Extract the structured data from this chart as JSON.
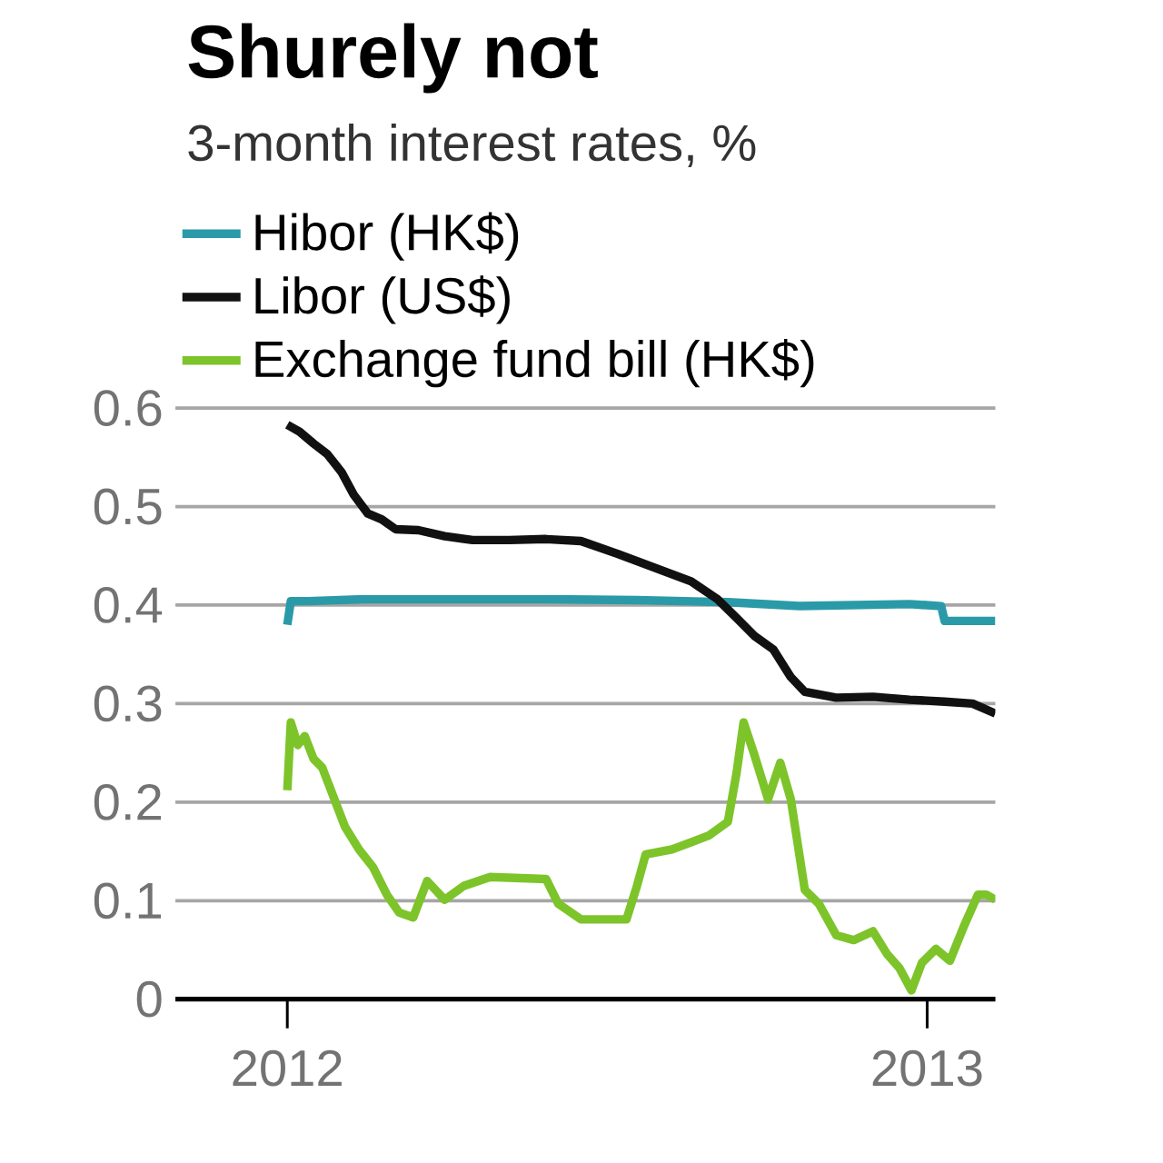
{
  "chart_data": {
    "type": "line",
    "title": "Shurely not",
    "subtitle": "3-month interest rates, %",
    "series": [
      {
        "name": "Hibor (HK$)",
        "color": "#2a9aa8",
        "x": [
          "2012-01-01",
          "2012-01-03",
          "2012-01-13",
          "2012-02-14",
          "2012-05-28",
          "2012-07-19",
          "2012-09-09",
          "2012-10-20",
          "2012-12-22",
          "2013-01-09",
          "2013-01-11",
          "2013-02-09"
        ],
        "values": [
          0.38,
          0.404,
          0.404,
          0.406,
          0.406,
          0.405,
          0.403,
          0.399,
          0.401,
          0.399,
          0.384,
          0.384
        ]
      },
      {
        "name": "Libor (US$)",
        "color": "#111111",
        "x": [
          "2012-01-01",
          "2012-01-08",
          "2012-01-16",
          "2012-01-24",
          "2012-02-01",
          "2012-02-08",
          "2012-02-16",
          "2012-02-24",
          "2012-03-03",
          "2012-03-16",
          "2012-03-31",
          "2012-04-16",
          "2012-05-07",
          "2012-05-28",
          "2012-06-17",
          "2012-07-08",
          "2012-07-29",
          "2012-08-19",
          "2012-09-03",
          "2012-09-14",
          "2012-09-24",
          "2012-10-05",
          "2012-10-15",
          "2012-10-23",
          "2012-11-10",
          "2012-12-01",
          "2012-12-22",
          "2013-01-11",
          "2013-01-27",
          "2013-02-09"
        ],
        "values": [
          0.583,
          0.576,
          0.564,
          0.553,
          0.535,
          0.512,
          0.493,
          0.487,
          0.477,
          0.476,
          0.47,
          0.466,
          0.466,
          0.467,
          0.465,
          0.452,
          0.438,
          0.424,
          0.406,
          0.387,
          0.369,
          0.355,
          0.327,
          0.312,
          0.306,
          0.307,
          0.304,
          0.302,
          0.3,
          0.29
        ]
      },
      {
        "name": "Exchange fund bill (HK$)",
        "color": "#7dc42a",
        "x": [
          "2012-01-01",
          "2012-01-03",
          "2012-01-07",
          "2012-01-11",
          "2012-01-16",
          "2012-01-21",
          "2012-01-26",
          "2012-02-03",
          "2012-02-11",
          "2012-02-19",
          "2012-02-27",
          "2012-03-05",
          "2012-03-13",
          "2012-03-21",
          "2012-03-31",
          "2012-04-11",
          "2012-04-26",
          "2012-05-28",
          "2012-06-04",
          "2012-06-17",
          "2012-07-13",
          "2012-07-19",
          "2012-07-24",
          "2012-08-08",
          "2012-08-29",
          "2012-09-09",
          "2012-09-14",
          "2012-09-18",
          "2012-09-24",
          "2012-10-02",
          "2012-10-09",
          "2012-10-15",
          "2012-10-23",
          "2012-10-31",
          "2012-11-10",
          "2012-11-20",
          "2012-12-01",
          "2012-12-09",
          "2012-12-16",
          "2012-12-23",
          "2012-12-29",
          "2013-01-06",
          "2013-01-14",
          "2013-01-22",
          "2013-01-30",
          "2013-02-04",
          "2013-02-09"
        ],
        "values": [
          0.212,
          0.281,
          0.258,
          0.267,
          0.244,
          0.235,
          0.212,
          0.175,
          0.152,
          0.134,
          0.106,
          0.088,
          0.083,
          0.12,
          0.101,
          0.115,
          0.124,
          0.122,
          0.097,
          0.081,
          0.081,
          0.115,
          0.147,
          0.152,
          0.166,
          0.18,
          0.23,
          0.281,
          0.249,
          0.203,
          0.24,
          0.203,
          0.111,
          0.097,
          0.065,
          0.06,
          0.069,
          0.046,
          0.032,
          0.009,
          0.037,
          0.051,
          0.039,
          0.074,
          0.106,
          0.106,
          0.101
        ]
      }
    ],
    "xlim": [
      "2011-10-29",
      "2013-02-09"
    ],
    "xticks": [
      "2012",
      "2013"
    ],
    "ylim": [
      0,
      0.6
    ],
    "yticks": [
      0,
      0.1,
      0.2,
      0.3,
      0.4,
      0.5,
      0.6
    ],
    "grid": "y",
    "legend": "top left"
  }
}
